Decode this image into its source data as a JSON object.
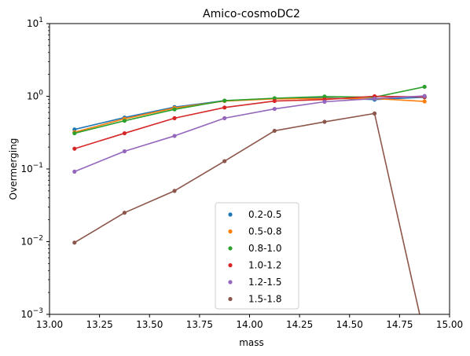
{
  "chart_data": {
    "type": "line",
    "title": "Amico-cosmoDC2",
    "xlabel": "mass",
    "ylabel": "Overmerging",
    "xlim": [
      13.0,
      15.0
    ],
    "ylim": [
      0.001,
      10
    ],
    "yscale": "log",
    "grid": false,
    "legend_position": "bottom-center",
    "x_ticks": [
      "13.00",
      "13.25",
      "13.50",
      "13.75",
      "14.00",
      "14.25",
      "14.50",
      "14.75",
      "15.00"
    ],
    "y_ticks": [
      {
        "value": 0.001,
        "base": "10",
        "exp": "−3"
      },
      {
        "value": 0.01,
        "base": "10",
        "exp": "−2"
      },
      {
        "value": 0.1,
        "base": "10",
        "exp": "−1"
      },
      {
        "value": 1,
        "base": "10",
        "exp": "0"
      },
      {
        "value": 10,
        "base": "10",
        "exp": "1"
      }
    ],
    "x": [
      13.125,
      13.375,
      13.625,
      13.875,
      14.125,
      14.375,
      14.625,
      14.875
    ],
    "series": [
      {
        "name": "0.2-0.5",
        "color": "#1f77b4",
        "values": [
          0.35,
          0.51,
          0.71,
          0.87,
          0.93,
          0.95,
          0.9,
          0.97
        ]
      },
      {
        "name": "0.5-0.8",
        "color": "#ff7f0e",
        "values": [
          0.32,
          0.49,
          0.69,
          0.86,
          0.92,
          0.93,
          0.93,
          0.85
        ]
      },
      {
        "name": "0.8-1.0",
        "color": "#2ca02c",
        "values": [
          0.31,
          0.46,
          0.66,
          0.87,
          0.94,
          0.99,
          0.97,
          1.35
        ]
      },
      {
        "name": "1.0-1.2",
        "color": "#d62728",
        "values": [
          0.19,
          0.31,
          0.5,
          0.7,
          0.86,
          0.9,
          1.0,
          0.98
        ]
      },
      {
        "name": "1.2-1.5",
        "color": "#9467bd",
        "values": [
          0.092,
          0.175,
          0.285,
          0.5,
          0.67,
          0.84,
          0.93,
          1.01
        ]
      },
      {
        "name": "1.5-1.8",
        "color": "#8c564b",
        "values": [
          0.0097,
          0.025,
          0.05,
          0.128,
          0.335,
          0.445,
          0.58,
          0.0005
        ]
      }
    ]
  }
}
